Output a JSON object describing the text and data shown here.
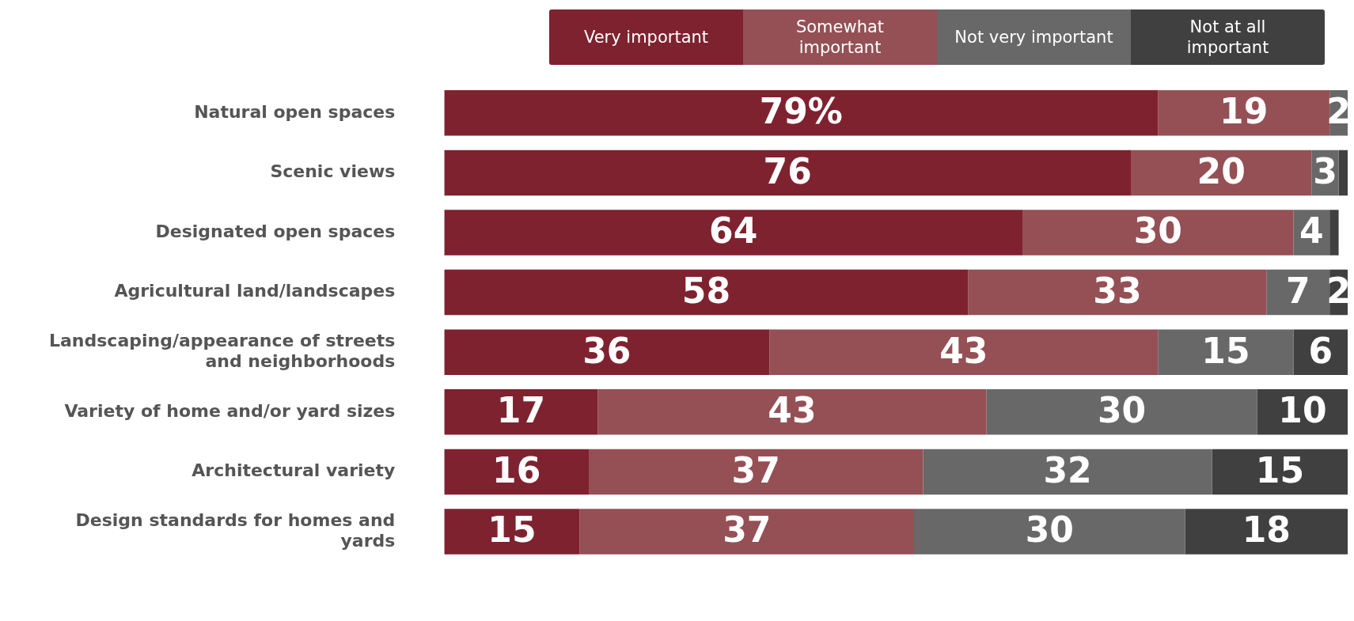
{
  "chart_data": {
    "type": "bar",
    "orientation": "horizontal",
    "stacked": true,
    "legend": "top",
    "categories": [
      "Natural open spaces",
      "Scenic views",
      "Designated open spaces",
      "Agricultural land/landscapes",
      "Landscaping/appearance of streets and neighborhoods",
      "Variety of home and/or yard sizes",
      "Architectural variety",
      "Design standards for homes and yards"
    ],
    "series": [
      {
        "name": "Very important",
        "color": "#7f222f",
        "values": [
          79,
          76,
          64,
          58,
          36,
          17,
          16,
          15
        ],
        "value_labels": [
          "79%",
          "76",
          "64",
          "58",
          "36",
          "17",
          "16",
          "15"
        ]
      },
      {
        "name": "Somewhat important",
        "color": "#955055",
        "values": [
          19,
          20,
          30,
          33,
          43,
          43,
          37,
          37
        ],
        "value_labels": [
          "19",
          "20",
          "30",
          "33",
          "43",
          "43",
          "37",
          "37"
        ]
      },
      {
        "name": "Not very important",
        "color": "#686868",
        "values": [
          2,
          3,
          4,
          7,
          15,
          30,
          32,
          30
        ],
        "value_labels": [
          "2",
          "3",
          "4",
          "7",
          "15",
          "30",
          "32",
          "30"
        ]
      },
      {
        "name": "Not at all important",
        "color": "#404040",
        "values": [
          null,
          1,
          1,
          2,
          6,
          10,
          15,
          18
        ],
        "value_labels": [
          null,
          null,
          null,
          "2",
          "6",
          "10",
          "15",
          "18"
        ]
      }
    ]
  }
}
